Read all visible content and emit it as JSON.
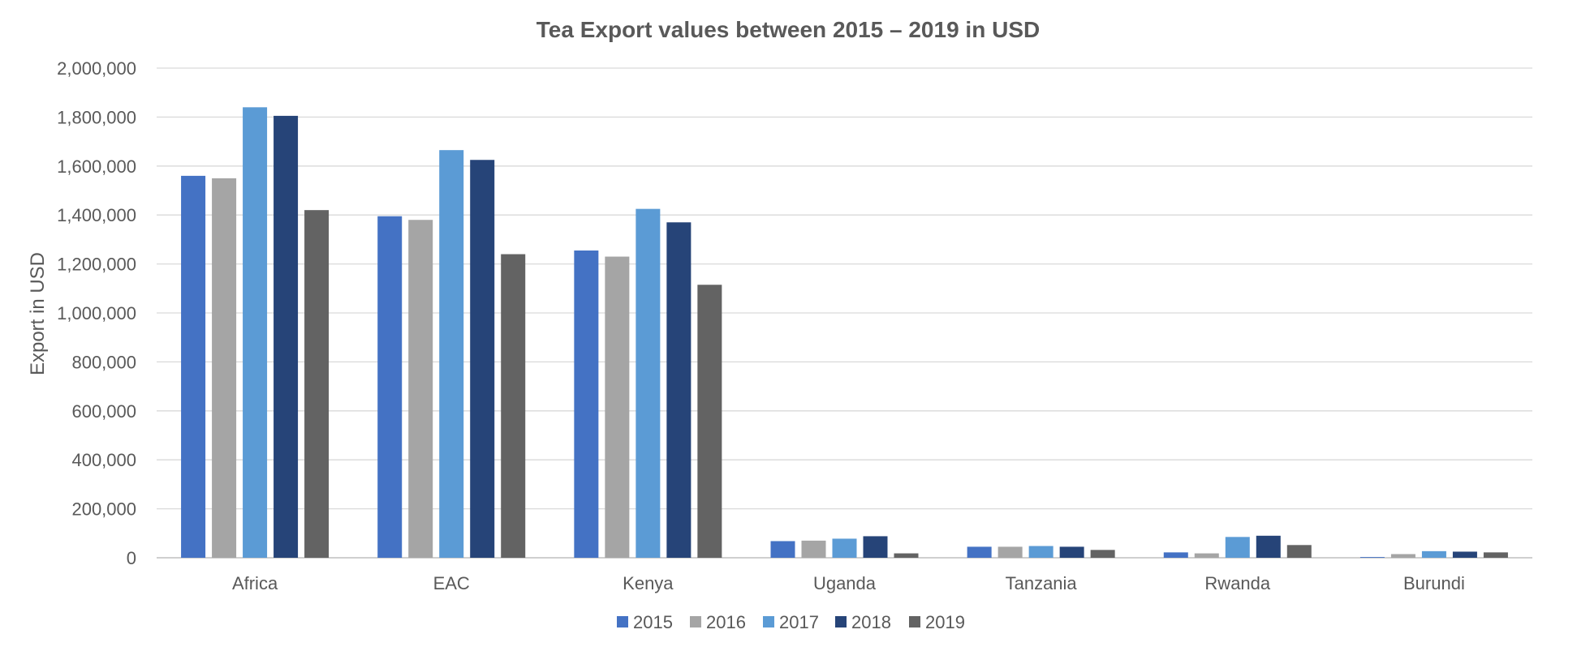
{
  "chart_data": {
    "type": "bar",
    "title": "Tea Export values between 2015 – 2019 in USD",
    "ylabel": "Export in USD",
    "xlabel": "",
    "ylim": [
      0,
      2000000
    ],
    "yticks": [
      0,
      200000,
      400000,
      600000,
      800000,
      1000000,
      1200000,
      1400000,
      1600000,
      1800000,
      2000000
    ],
    "ytick_labels": [
      "0",
      "200,000",
      "400,000",
      "600,000",
      "800,000",
      "1,000,000",
      "1,200,000",
      "1,400,000",
      "1,600,000",
      "1,800,000",
      "2,000,000"
    ],
    "grid": true,
    "legend_position": "bottom",
    "categories": [
      "Africa",
      "EAC",
      "Kenya",
      "Uganda",
      "Tanzania",
      "Rwanda",
      "Burundi"
    ],
    "series": [
      {
        "name": "2015",
        "color": "#4472c4",
        "values": [
          1560000,
          1395000,
          1255000,
          68000,
          45000,
          22000,
          3000
        ]
      },
      {
        "name": "2016",
        "color": "#a5a5a5",
        "values": [
          1550000,
          1380000,
          1230000,
          70000,
          45000,
          18000,
          15000
        ]
      },
      {
        "name": "2017",
        "color": "#5b9bd5",
        "values": [
          1840000,
          1665000,
          1425000,
          78000,
          48000,
          85000,
          27000
        ]
      },
      {
        "name": "2018",
        "color": "#264478",
        "values": [
          1805000,
          1625000,
          1370000,
          88000,
          45000,
          90000,
          25000
        ]
      },
      {
        "name": "2019",
        "color": "#636363",
        "values": [
          1420000,
          1240000,
          1115000,
          18000,
          32000,
          52000,
          22000
        ]
      }
    ]
  }
}
